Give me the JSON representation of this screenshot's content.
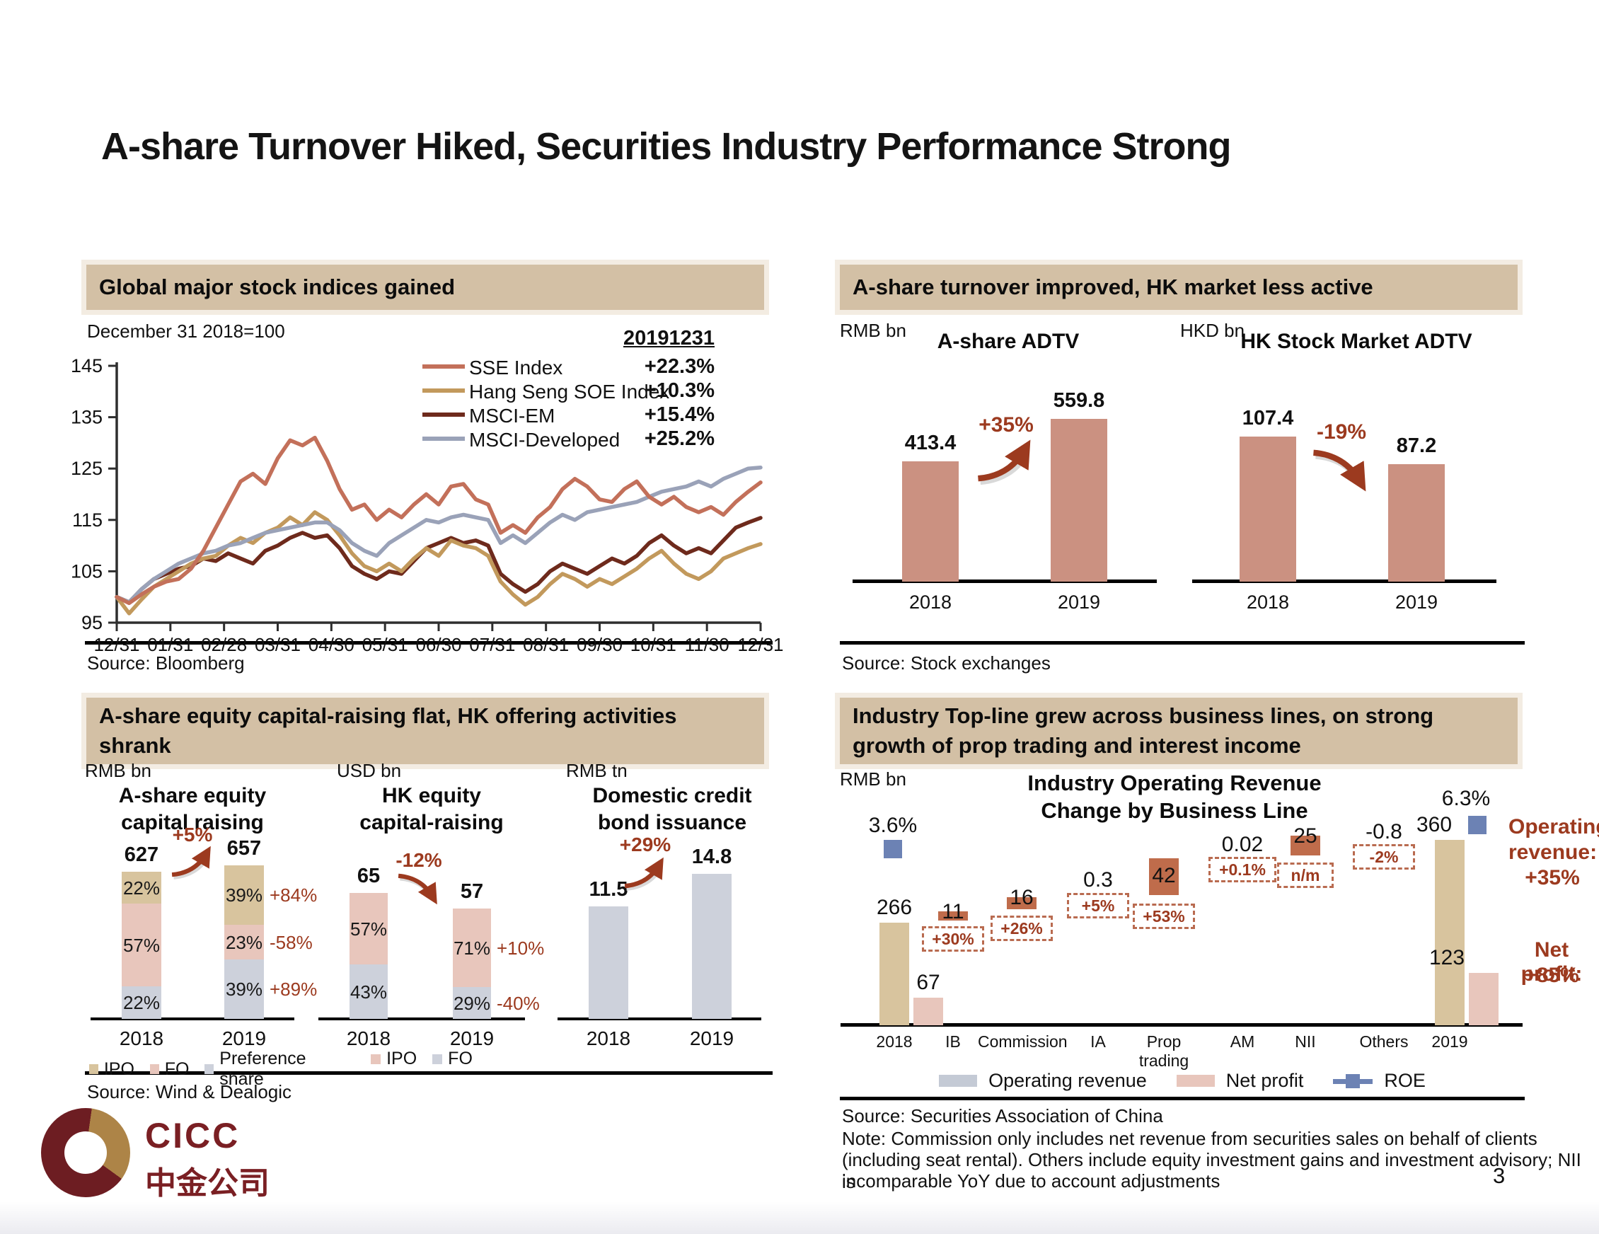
{
  "slide": {
    "title": "A-share Turnover Hiked, Securities Industry Performance Strong",
    "page_number": "3",
    "logo": {
      "brand": "CICC",
      "brand_cn": "中金公司"
    }
  },
  "colors": {
    "header_bg": "#d3c0a5",
    "salmon": "#cb9181",
    "tan": "#d8c49e",
    "pink": "#e8c6bc",
    "gray": "#cdd1db",
    "wf_orange": "#bf6c4b",
    "blue": "#6c82b4",
    "dark_red": "#9c3a1f",
    "line_sse": "#c3705a",
    "line_hs": "#c2995c",
    "line_em": "#6e2a1c",
    "line_dev": "#9aa2b8"
  },
  "indices": {
    "header": "Global major stock indices gained",
    "note": "December 31 2018=100",
    "source": "Source: Bloomberg"
  },
  "turnover": {
    "header": "A-share turnover improved, HK market less active",
    "source": "Source: Stock exchanges"
  },
  "capital": {
    "header_line1": "A-share equity capital-raising flat, HK offering activities",
    "header_line2": "shrank",
    "source": "Source: Wind & Dealogic"
  },
  "topline": {
    "header_line1": "Industry Top-line grew across business lines, on strong",
    "header_line2": "growth of prop trading and interest income",
    "legend": [
      "Operating revenue",
      "Net profit",
      "ROE"
    ],
    "annotation_revenue": [
      "Operating",
      "revenue:",
      "+35%"
    ],
    "annotation_profit": [
      "Net profit:",
      "+85%"
    ],
    "source": "Source: Securities Association of China",
    "note_lines": [
      "Note: Commission only includes net revenue from securities sales on behalf of clients",
      "(including seat rental). Others include equity investment gains and investment advisory; NII is",
      "incomparable YoY due to account adjustments"
    ]
  },
  "chart_data": [
    {
      "id": "global-indices",
      "type": "line",
      "title": "Global major stock indices gained",
      "subtitle": "December 31 2018=100",
      "asof_label": "20191231",
      "ylim": [
        95,
        145
      ],
      "yticks": [
        145,
        135,
        125,
        115,
        105,
        95
      ],
      "x_labels": [
        "12/31",
        "01/31",
        "02/28",
        "03/31",
        "04/30",
        "05/31",
        "06/30",
        "07/31",
        "08/31",
        "09/30",
        "10/31",
        "11/30",
        "12/31"
      ],
      "legend_position": "top-right",
      "series": [
        {
          "name": "SSE Index",
          "change_label": "+22.3%",
          "color_key": "line_sse",
          "values": [
            100,
            98.8,
            100.5,
            102,
            103,
            103.5,
            105.5,
            109,
            113.5,
            118,
            122.5,
            124,
            122,
            127,
            130.5,
            129.5,
            131,
            126.5,
            121,
            117,
            118,
            115,
            117,
            115.5,
            118,
            120,
            118,
            121.5,
            122,
            119,
            118,
            112.5,
            114,
            112.5,
            115.5,
            117.5,
            121,
            123,
            121.5,
            119,
            118.5,
            121,
            122.5,
            119.5,
            118,
            119.5,
            117.5,
            116.5,
            117.5,
            116,
            118.5,
            120.5,
            122.3
          ]
        },
        {
          "name": "Hang Seng SOE Index",
          "change_label": "+10.3%",
          "color_key": "line_hs",
          "values": [
            100,
            96.8,
            99.5,
            102,
            103.5,
            105,
            106.5,
            107.5,
            108,
            110,
            111.5,
            110.5,
            112.5,
            113.5,
            115.5,
            114,
            116.5,
            115,
            112,
            108.5,
            106,
            105,
            106.5,
            105,
            107.5,
            109.5,
            108,
            111,
            110,
            109.5,
            108,
            103,
            100.5,
            98.5,
            100,
            102.5,
            104.5,
            103.5,
            102,
            103.5,
            102.5,
            104,
            105.5,
            107.5,
            109,
            106.5,
            104.5,
            103.5,
            105,
            107.5,
            108.5,
            109.5,
            110.3
          ]
        },
        {
          "name": "MSCI-EM",
          "change_label": "+15.4%",
          "color_key": "line_em",
          "values": [
            100,
            99,
            101.5,
            103.5,
            104.5,
            105.5,
            106,
            107.5,
            107,
            108.5,
            107.5,
            106.5,
            109,
            110,
            111.5,
            112.5,
            111.5,
            112,
            109.5,
            106,
            104.5,
            103.5,
            105,
            104.5,
            107,
            109.5,
            110.5,
            111.5,
            110.5,
            111,
            110,
            104.5,
            102.5,
            101,
            102.5,
            105,
            106.5,
            105.5,
            104.5,
            106,
            107.5,
            106.5,
            108,
            110.5,
            112,
            110,
            108.5,
            109.5,
            108.5,
            111,
            113.5,
            114.5,
            115.4
          ]
        },
        {
          "name": "MSCI-Developed",
          "change_label": "+25.2%",
          "color_key": "line_dev",
          "values": [
            100,
            99,
            101.5,
            103.5,
            105,
            106.5,
            107.5,
            108.5,
            109,
            110,
            110.5,
            111.5,
            112.5,
            113,
            113.5,
            114,
            114.5,
            114.5,
            113,
            110.5,
            109,
            108,
            110.5,
            112,
            113.5,
            115,
            114.5,
            115.5,
            116,
            115.5,
            115,
            110.5,
            112,
            110.5,
            112.5,
            114.5,
            116,
            115,
            116.5,
            117,
            117.5,
            118,
            118.5,
            119.5,
            120.5,
            121,
            121.5,
            122.5,
            121.5,
            123,
            124,
            125,
            125.2
          ]
        }
      ]
    },
    {
      "id": "adtv",
      "type": "bar",
      "charts": [
        {
          "unit": "RMB bn",
          "title": "A-share ADTV",
          "categories": [
            "2018",
            "2019"
          ],
          "values": [
            413.4,
            559.8
          ],
          "change": "+35%",
          "direction": "up",
          "bar_color_key": "salmon"
        },
        {
          "unit": "HKD bn",
          "title": "HK Stock Market ADTV",
          "categories": [
            "2018",
            "2019"
          ],
          "values": [
            107.4,
            87.2
          ],
          "change": "-19%",
          "direction": "down",
          "bar_color_key": "salmon"
        }
      ]
    },
    {
      "id": "capital-raising",
      "type": "stacked-bar",
      "charts": [
        {
          "unit": "RMB bn",
          "title_line1": "A-share equity",
          "title_line2": "capital raising",
          "categories": [
            "2018",
            "2019"
          ],
          "totals": [
            627,
            657
          ],
          "total_change": "+5%",
          "direction": "up",
          "legend": [
            {
              "label": "IPO",
              "color_key": "tan"
            },
            {
              "label": "FO",
              "color_key": "pink"
            },
            {
              "label": "Preference share",
              "color_key": "gray"
            }
          ],
          "stacks": [
            {
              "segments": [
                {
                  "key": "IPO",
                  "pct": 22,
                  "color_key": "tan"
                },
                {
                  "key": "FO",
                  "pct": 57,
                  "color_key": "pink"
                },
                {
                  "key": "Preference share",
                  "pct": 22,
                  "color_key": "gray"
                }
              ]
            },
            {
              "segments": [
                {
                  "key": "IPO",
                  "pct": 39,
                  "color_key": "tan",
                  "change": "+84%"
                },
                {
                  "key": "FO",
                  "pct": 23,
                  "color_key": "pink",
                  "change": "-58%"
                },
                {
                  "key": "Preference share",
                  "pct": 39,
                  "color_key": "gray",
                  "change": "+89%"
                }
              ]
            }
          ]
        },
        {
          "unit": "USD bn",
          "title_line1": "HK equity",
          "title_line2": "capital-raising",
          "categories": [
            "2018",
            "2019"
          ],
          "totals": [
            65,
            57
          ],
          "total_change": "-12%",
          "direction": "down",
          "legend": [
            {
              "label": "IPO",
              "color_key": "pink"
            },
            {
              "label": "FO",
              "color_key": "gray"
            }
          ],
          "stacks": [
            {
              "segments": [
                {
                  "key": "IPO",
                  "pct": 57,
                  "color_key": "pink"
                },
                {
                  "key": "FO",
                  "pct": 43,
                  "color_key": "gray"
                }
              ]
            },
            {
              "segments": [
                {
                  "key": "IPO",
                  "pct": 71,
                  "color_key": "pink",
                  "change": "+10%"
                },
                {
                  "key": "FO",
                  "pct": 29,
                  "color_key": "gray",
                  "change": "-40%"
                }
              ]
            }
          ]
        },
        {
          "unit": "RMB tn",
          "title_line1": "Domestic credit",
          "title_line2": "bond issuance",
          "categories": [
            "2018",
            "2019"
          ],
          "totals": [
            11.5,
            14.8
          ],
          "total_change": "+29%",
          "direction": "up",
          "legend": [],
          "stacks": [
            {
              "segments": [
                {
                  "pct": 100,
                  "color_key": "gray"
                }
              ]
            },
            {
              "segments": [
                {
                  "pct": 100,
                  "color_key": "gray"
                }
              ]
            }
          ]
        }
      ]
    },
    {
      "id": "topline-waterfall",
      "type": "waterfall",
      "unit": "RMB bn",
      "title_line1": "Industry Operating Revenue",
      "title_line2": "Change by Business Line",
      "categories": [
        "2018",
        "IB",
        "Commission",
        "IA",
        "Prop trading",
        "AM",
        "NII",
        "Others",
        "2019"
      ],
      "operating_revenue": {
        "y2018": 266,
        "y2019": 360
      },
      "net_profit": {
        "y2018": 67,
        "y2019": 123
      },
      "roe_pct": {
        "y2018": "3.6%",
        "y2019": "6.3%"
      },
      "deltas": [
        {
          "category": "IB",
          "value": "11",
          "change": "+30%"
        },
        {
          "category": "Commission",
          "value": "16",
          "change": "+26%"
        },
        {
          "category": "IA",
          "value": "0.3",
          "change": "+5%"
        },
        {
          "category": "Prop trading",
          "value": "42",
          "change": "+53%"
        },
        {
          "category": "AM",
          "value": "0.02",
          "change": "+0.1%"
        },
        {
          "category": "NII",
          "value": "25",
          "change": "n/m"
        },
        {
          "category": "Others",
          "value": "-0.8",
          "change": "-2%"
        }
      ],
      "totals_change": {
        "operating_revenue": "+35%",
        "net_profit": "+85%"
      }
    }
  ]
}
